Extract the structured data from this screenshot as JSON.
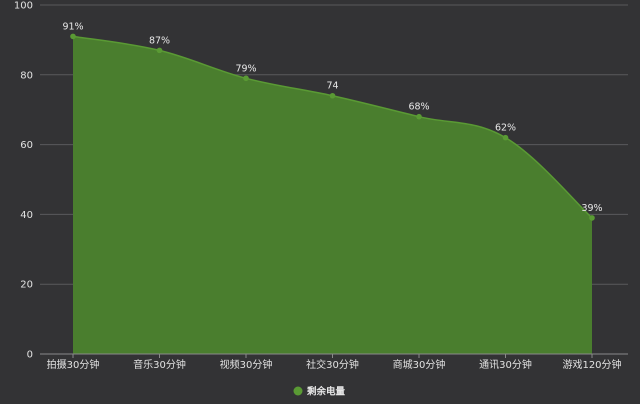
{
  "chart_data": {
    "type": "area",
    "categories": [
      "拍摄30分钟",
      "音乐30分钟",
      "视频30分钟",
      "社交30分钟",
      "商城30分钟",
      "通讯30分钟",
      "游戏120分钟"
    ],
    "series": [
      {
        "name": "剩余电量",
        "values": [
          91,
          87,
          79,
          74,
          68,
          62,
          39
        ],
        "labels": [
          "91%",
          "87%",
          "79%",
          "74",
          "68%",
          "62%",
          "39%"
        ],
        "color": "#4a7e2e",
        "line_color": "#5a9a34"
      }
    ],
    "ylim": [
      0,
      100
    ],
    "yticks": [
      "0",
      "20",
      "40",
      "60",
      "80",
      "100"
    ],
    "grid": true,
    "legend": "bottom-center",
    "colors": {
      "background": "#333335",
      "grid": "#5a5a5c",
      "text": "#e2e2e2"
    }
  }
}
